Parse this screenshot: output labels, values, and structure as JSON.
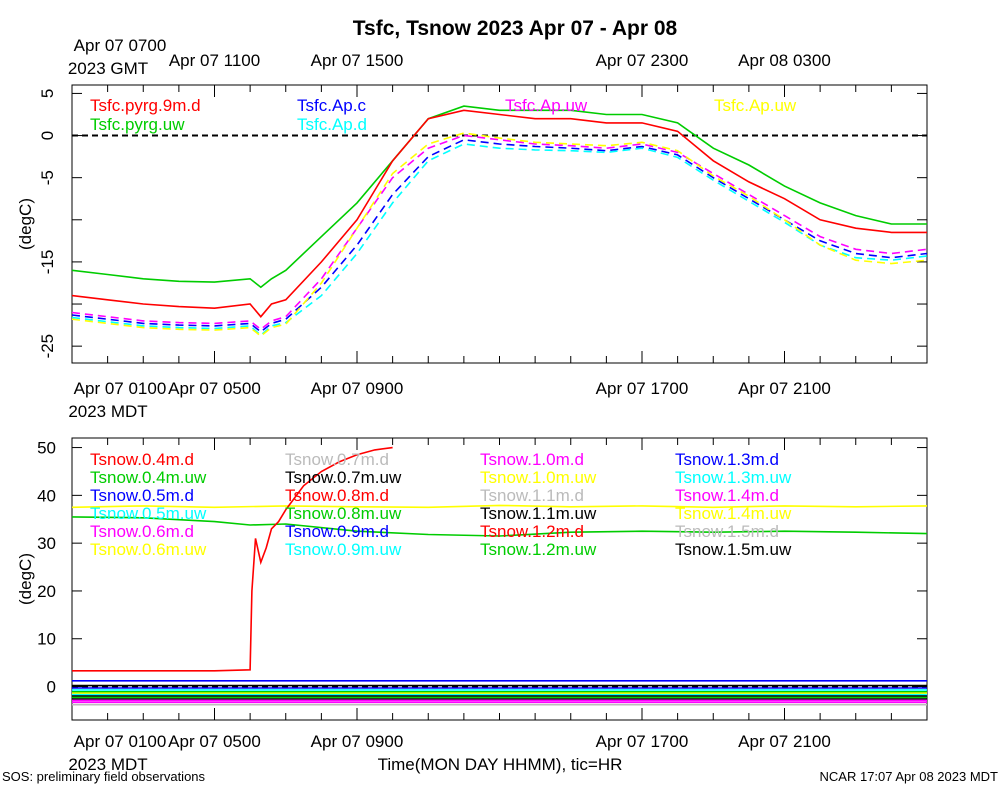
{
  "title": "Tsfc, Tsnow 2023 Apr 07 - Apr 08",
  "footer_left": "SOS: preliminary field observations",
  "footer_right": "NCAR 17:07 Apr 08 2023 MDT",
  "xlabel": "Time(MON DAY HHMM), tic=HR",
  "gmt_axis": {
    "first_line1": "Apr 07 0700",
    "first_line2": "2023 GMT",
    "ticks": [
      "Apr 07 1100",
      "Apr 07 1500",
      "Apr 07 2300",
      "Apr 08 0300"
    ]
  },
  "mdt_axis": {
    "first_line1": "Apr 07 0100",
    "first_line2": "2023 MDT",
    "ticks": [
      "Apr 07 0500",
      "Apr 07 0900",
      "Apr 07 1700",
      "Apr 07 2100"
    ]
  },
  "chart_data": [
    {
      "type": "line",
      "name": "Tsfc",
      "ylabel": "(degC)",
      "x_unit": "hours since Apr 07 0000 MDT",
      "xlim": [
        1.0,
        25.0
      ],
      "ylim": [
        -27,
        6
      ],
      "yticks": [
        5,
        0,
        -5,
        -15,
        -25
      ],
      "yticks_minor": [
        5,
        0,
        -5,
        -10,
        -15,
        -20,
        -25
      ],
      "reference_line": 0,
      "legend": [
        {
          "label": "Tsfc.pyrg.9m.d",
          "color": "#ff0000"
        },
        {
          "label": "Tsfc.Ap.c",
          "color": "#0000ff"
        },
        {
          "label": "Tsfc.Ap.uw",
          "color": "#ff00ff"
        },
        {
          "label": "Tsfc.Ap.uw",
          "color": "#ffff00"
        },
        {
          "label": "Tsfc.pyrg.uw",
          "color": "#00cc00"
        },
        {
          "label": "Tsfc.Ap.d",
          "color": "#00ffff"
        }
      ],
      "series": [
        {
          "name": "Tsfc.pyrg.uw",
          "color": "#00cc00",
          "dashed": false,
          "x": [
            1.0,
            2.0,
            3.0,
            4.0,
            5.0,
            6.0,
            6.3,
            6.6,
            7.0,
            8.0,
            9.0,
            10.0,
            11.0,
            12.0,
            13.0,
            14.0,
            15.0,
            16.0,
            17.0,
            18.0,
            19.0,
            20.0,
            21.0,
            22.0,
            23.0,
            24.0,
            25.0
          ],
          "y": [
            -16,
            -16.5,
            -17,
            -17.3,
            -17.4,
            -17,
            -18,
            -17,
            -16,
            -12,
            -8,
            -3,
            2,
            3.5,
            3,
            3,
            3,
            2.5,
            2.5,
            1.5,
            -1.5,
            -3.5,
            -6,
            -8,
            -9.5,
            -10.5,
            -10.5
          ]
        },
        {
          "name": "Tsfc.pyrg.9m.d",
          "color": "#ff0000",
          "dashed": false,
          "x": [
            1.0,
            2.0,
            3.0,
            4.0,
            5.0,
            6.0,
            6.3,
            6.6,
            7.0,
            8.0,
            9.0,
            10.0,
            11.0,
            12.0,
            13.0,
            14.0,
            15.0,
            16.0,
            17.0,
            18.0,
            19.0,
            20.0,
            21.0,
            22.0,
            23.0,
            24.0,
            25.0
          ],
          "y": [
            -19,
            -19.5,
            -20,
            -20.3,
            -20.5,
            -20,
            -21.5,
            -20,
            -19.5,
            -15,
            -10,
            -3,
            2,
            3,
            2.5,
            2,
            2,
            1.5,
            1.5,
            0.5,
            -3,
            -5.5,
            -7.5,
            -10,
            -11,
            -11.5,
            -11.5
          ]
        },
        {
          "name": "Tsfc.Ap.uw",
          "color": "#ff00ff",
          "dashed": true,
          "x": [
            1.0,
            2.0,
            3.0,
            4.0,
            5.0,
            6.0,
            6.3,
            6.6,
            7.0,
            8.0,
            9.0,
            10.0,
            11.0,
            12.0,
            13.0,
            14.0,
            15.0,
            16.0,
            17.0,
            18.0,
            19.0,
            20.0,
            21.0,
            22.0,
            23.0,
            24.0,
            25.0
          ],
          "y": [
            -21,
            -21.5,
            -22,
            -22.2,
            -22.3,
            -22,
            -23,
            -22,
            -21.5,
            -17,
            -11,
            -5,
            -1.5,
            0,
            -0.5,
            -1,
            -1.2,
            -1.5,
            -1,
            -2,
            -4.5,
            -7,
            -9.5,
            -12,
            -13.5,
            -14,
            -13.5
          ]
        },
        {
          "name": "Tsfc.Ap.c",
          "color": "#0000ff",
          "dashed": true,
          "x": [
            1.0,
            2.0,
            3.0,
            4.0,
            5.0,
            6.0,
            6.3,
            6.6,
            7.0,
            8.0,
            9.0,
            10.0,
            11.0,
            12.0,
            13.0,
            14.0,
            15.0,
            16.0,
            17.0,
            18.0,
            19.0,
            20.0,
            21.0,
            22.0,
            23.0,
            24.0,
            25.0
          ],
          "y": [
            -21.3,
            -21.8,
            -22.3,
            -22.5,
            -22.6,
            -22.3,
            -23.3,
            -22.3,
            -21.8,
            -18,
            -13,
            -7,
            -2.5,
            -0.5,
            -1,
            -1.3,
            -1.5,
            -1.8,
            -1.3,
            -2.3,
            -5,
            -7.5,
            -10,
            -12.5,
            -14,
            -14.5,
            -14
          ]
        },
        {
          "name": "Tsfc.Ap.d",
          "color": "#00ffff",
          "dashed": true,
          "x": [
            1.0,
            2.0,
            3.0,
            4.0,
            5.0,
            6.0,
            6.3,
            6.6,
            7.0,
            8.0,
            9.0,
            10.0,
            11.0,
            12.0,
            13.0,
            14.0,
            15.0,
            16.0,
            17.0,
            18.0,
            19.0,
            20.0,
            21.0,
            22.0,
            23.0,
            24.0,
            25.0
          ],
          "y": [
            -21.6,
            -22.1,
            -22.6,
            -22.8,
            -22.9,
            -22.6,
            -23.7,
            -22.6,
            -22.2,
            -19,
            -14,
            -8,
            -3,
            -1,
            -1.5,
            -1.7,
            -1.8,
            -2,
            -1.5,
            -2.6,
            -5.3,
            -7.8,
            -10.3,
            -13,
            -14.5,
            -14.8,
            -14.3
          ]
        },
        {
          "name": "Tsfc.Ap.uw",
          "color": "#ffff00",
          "dashed": true,
          "x": [
            1.0,
            2.0,
            3.0,
            4.0,
            5.0,
            6.0,
            6.3,
            6.6,
            7.0,
            8.0,
            9.0,
            10.0,
            11.0,
            12.0,
            13.0,
            14.0,
            15.0,
            16.0,
            17.0,
            18.0,
            19.0,
            20.0,
            21.0,
            22.0,
            23.0,
            24.0,
            25.0
          ],
          "y": [
            -21.8,
            -22.3,
            -22.8,
            -23,
            -23.1,
            -22.8,
            -23.8,
            -22.8,
            -22.4,
            -17.5,
            -11,
            -4.5,
            -1,
            0.3,
            -0.3,
            -0.8,
            -1,
            -1.2,
            -0.8,
            -1.8,
            -4.8,
            -7.2,
            -10,
            -13,
            -14.8,
            -15.2,
            -14.8
          ]
        }
      ]
    },
    {
      "type": "line",
      "name": "Tsnow",
      "ylabel": "(degC)",
      "x_unit": "hours since Apr 07 0000 MDT",
      "xlim": [
        1.0,
        25.0
      ],
      "ylim": [
        -7,
        52
      ],
      "yticks": [
        50,
        40,
        30,
        20,
        10,
        0
      ],
      "reference_line": 0,
      "legend": [
        {
          "label": "Tsnow.0.4m.d",
          "color": "#ff0000"
        },
        {
          "label": "Tsnow.0.7m.d",
          "color": "#bbbbbb"
        },
        {
          "label": "Tsnow.1.0m.d",
          "color": "#ff00ff"
        },
        {
          "label": "Tsnow.1.3m.d",
          "color": "#0000ff"
        },
        {
          "label": "Tsnow.0.4m.uw",
          "color": "#00cc00"
        },
        {
          "label": "Tsnow.0.7m.uw",
          "color": "#000000"
        },
        {
          "label": "Tsnow.1.0m.uw",
          "color": "#ffff00"
        },
        {
          "label": "Tsnow.1.3m.uw",
          "color": "#00ffff"
        },
        {
          "label": "Tsnow.0.5m.d",
          "color": "#0000ff"
        },
        {
          "label": "Tsnow.0.8m.d",
          "color": "#ff0000"
        },
        {
          "label": "Tsnow.1.1m.d",
          "color": "#bbbbbb"
        },
        {
          "label": "Tsnow.1.4m.d",
          "color": "#ff00ff"
        },
        {
          "label": "Tsnow.0.5m.uw",
          "color": "#00ffff"
        },
        {
          "label": "Tsnow.0.8m.uw",
          "color": "#00cc00"
        },
        {
          "label": "Tsnow.1.1m.uw",
          "color": "#000000"
        },
        {
          "label": "Tsnow.1.4m.uw",
          "color": "#ffff00"
        },
        {
          "label": "Tsnow.0.6m.d",
          "color": "#ff00ff"
        },
        {
          "label": "Tsnow.0.9m.d",
          "color": "#0000ff"
        },
        {
          "label": "Tsnow.1.2m.d",
          "color": "#ff0000"
        },
        {
          "label": "Tsnow.1.5m.d",
          "color": "#bbbbbb"
        },
        {
          "label": "Tsnow.0.6m.uw",
          "color": "#ffff00"
        },
        {
          "label": "Tsnow.0.9m.uw",
          "color": "#00ffff"
        },
        {
          "label": "Tsnow.1.2m.uw",
          "color": "#00cc00"
        },
        {
          "label": "Tsnow.1.5m.uw",
          "color": "#000000"
        }
      ],
      "series": [
        {
          "name": "Tsnow.1.4m.uw",
          "color": "#ffff00",
          "x": [
            1.0,
            3.0,
            5.0,
            7.0,
            9.0,
            11.0,
            13.0,
            15.0,
            17.0,
            19.0,
            21.0,
            23.0,
            25.0
          ],
          "y": [
            37.5,
            37.8,
            37.5,
            37.8,
            37.6,
            37.5,
            37.9,
            37.6,
            37.8,
            37.5,
            37.8,
            37.6,
            37.8
          ]
        },
        {
          "name": "Tsnow.0.4m.uw",
          "color": "#00cc00",
          "x": [
            1.0,
            3.0,
            5.0,
            6.0,
            7.0,
            9.0,
            11.0,
            13.0,
            15.0,
            17.0,
            19.0,
            21.0,
            23.0,
            25.0
          ],
          "y": [
            35.5,
            35.3,
            34.5,
            33.8,
            34.0,
            32.5,
            31.8,
            31.5,
            32.3,
            32.5,
            32.3,
            32.5,
            32.3,
            32.0
          ]
        },
        {
          "name": "Tsnow.0.4m.d",
          "color": "#ff0000",
          "x": [
            1.0,
            3.0,
            5.0,
            6.0,
            6.05,
            6.15,
            6.3,
            6.45,
            6.6,
            6.8,
            7.0,
            7.5,
            8.0,
            8.5,
            9.0,
            9.5,
            10.0
          ],
          "y": [
            3.3,
            3.3,
            3.3,
            3.5,
            20,
            31,
            26,
            29,
            33,
            34.5,
            37,
            42,
            45,
            47,
            48.5,
            49.5,
            50
          ]
        },
        {
          "name": "Tsnow.1.3m.d",
          "color": "#0000ff",
          "x": [
            1.0,
            25.0
          ],
          "y": [
            1.2,
            1.2
          ]
        },
        {
          "name": "Tsnow.0.7m.uw",
          "color": "#000000",
          "x": [
            1.0,
            25.0
          ],
          "y": [
            0.2,
            0.2
          ]
        },
        {
          "name": "Tsnow.0.5m.d",
          "color": "#0000ff",
          "x": [
            1.0,
            25.0
          ],
          "y": [
            -0.3,
            -0.3
          ]
        },
        {
          "name": "Tsnow.0.5m.uw",
          "color": "#00ffff",
          "x": [
            1.0,
            25.0
          ],
          "y": [
            -0.7,
            -0.7
          ]
        },
        {
          "name": "Tsnow.0.8m.uw",
          "color": "#00cc00",
          "x": [
            1.0,
            25.0
          ],
          "y": [
            -1.1,
            -1.1
          ]
        },
        {
          "name": "Tsnow.1.0m.uw",
          "color": "#ffff00",
          "x": [
            1.0,
            25.0
          ],
          "y": [
            -1.4,
            -1.4
          ]
        },
        {
          "name": "Tsnow.0.9m.uw",
          "color": "#00ffff",
          "x": [
            1.0,
            25.0
          ],
          "y": [
            -1.7,
            -1.7
          ]
        },
        {
          "name": "Tsnow.1.1m.uw",
          "color": "#000000",
          "x": [
            1.0,
            25.0
          ],
          "y": [
            -2.0,
            -2.0
          ]
        },
        {
          "name": "Tsnow.1.2m.uw",
          "color": "#00cc00",
          "x": [
            1.0,
            25.0
          ],
          "y": [
            -2.3,
            -2.3
          ]
        },
        {
          "name": "Tsnow.1.5m.uw",
          "color": "#000000",
          "x": [
            1.0,
            25.0
          ],
          "y": [
            -2.6,
            -2.6
          ]
        },
        {
          "name": "Tsnow.1.4m.d",
          "color": "#ff00ff",
          "x": [
            1.0,
            25.0
          ],
          "y": [
            -2.9,
            -2.9
          ]
        },
        {
          "name": "Tsnow.1.0m.d",
          "color": "#ff00ff",
          "x": [
            1.0,
            25.0
          ],
          "y": [
            -3.3,
            -3.3
          ]
        },
        {
          "name": "Tsnow.1.5m.d",
          "color": "#bbbbbb",
          "x": [
            1.0,
            25.0
          ],
          "y": [
            -3.8,
            -3.8
          ]
        }
      ]
    }
  ]
}
